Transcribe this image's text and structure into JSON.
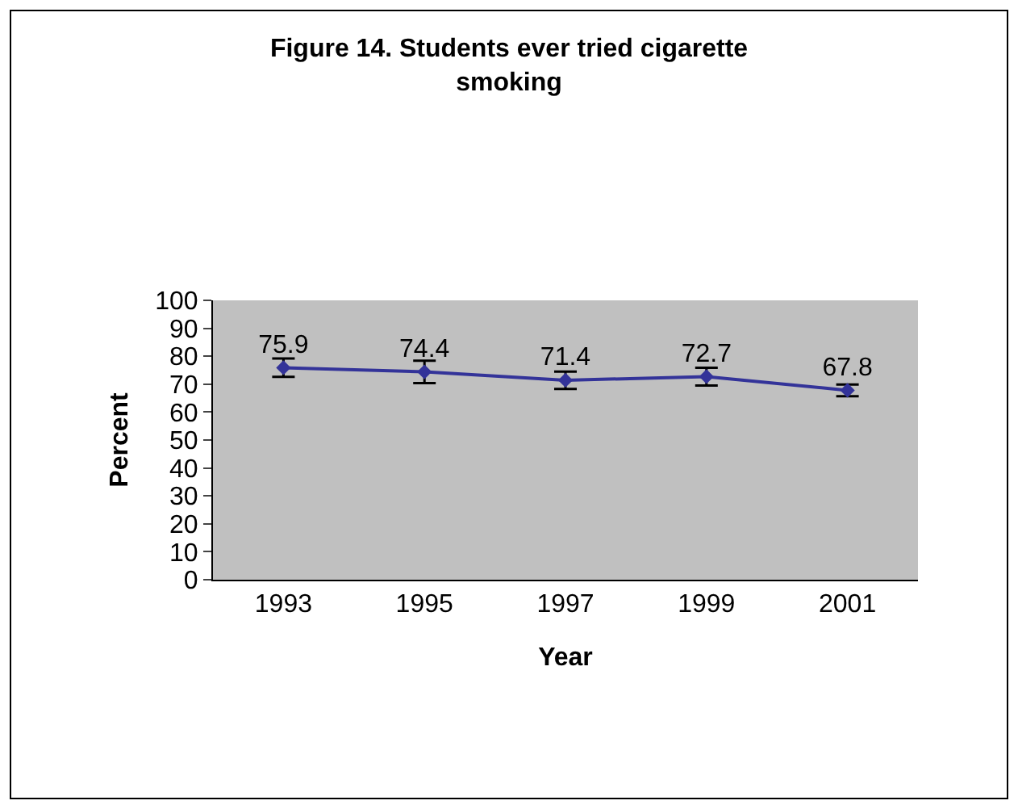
{
  "chart_data": {
    "type": "line",
    "title": "Figure 14. Students ever tried cigarette smoking",
    "xlabel": "Year",
    "ylabel": "Percent",
    "categories": [
      "1993",
      "1995",
      "1997",
      "1999",
      "2001"
    ],
    "series": [
      {
        "color": "#333399",
        "values": [
          75.9,
          74.4,
          71.4,
          72.7,
          67.8
        ],
        "errors": [
          3.3,
          4.0,
          3.1,
          3.2,
          2.1
        ]
      }
    ],
    "ylim": [
      0,
      100
    ],
    "yticks": [
      0,
      10,
      20,
      30,
      40,
      50,
      60,
      70,
      80,
      90,
      100
    ],
    "grid": false,
    "marker": "diamond",
    "line_style": "solid",
    "data_labels": true
  }
}
